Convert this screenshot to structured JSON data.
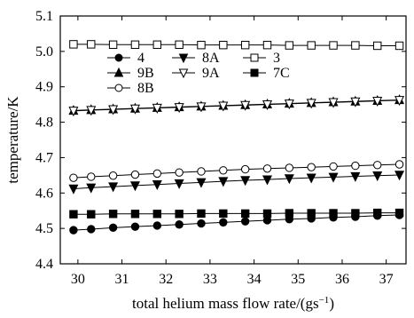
{
  "chart_data": {
    "type": "line",
    "title": "",
    "xlabel": "total helium mass flow rate/(gs",
    "xlabel_sup": "−1",
    "xlabel_close": ")",
    "ylabel": "temperature/K",
    "xlim": [
      29.6,
      37.45
    ],
    "ylim": [
      4.4,
      5.1
    ],
    "xticks": [
      30,
      31,
      32,
      33,
      34,
      35,
      36,
      37
    ],
    "yticks": [
      4.4,
      4.5,
      4.6,
      4.7,
      4.8,
      4.9,
      5.0,
      5.1
    ],
    "xtick_labels": [
      "30",
      "31",
      "32",
      "33",
      "34",
      "35",
      "36",
      "37"
    ],
    "ytick_labels": [
      "4.4",
      "4.5",
      "4.6",
      "4.7",
      "4.8",
      "4.9",
      "5.0",
      "5.1"
    ],
    "x": [
      29.9,
      30.3,
      30.8,
      31.3,
      31.8,
      32.3,
      32.8,
      33.3,
      33.8,
      34.3,
      34.8,
      35.3,
      35.8,
      36.3,
      36.8,
      37.3
    ],
    "grid": false,
    "legend_position": "top-left, inside plot",
    "series": [
      {
        "name": "4",
        "marker": "filled-circle",
        "values": [
          4.495,
          4.498,
          4.502,
          4.505,
          4.508,
          4.511,
          4.514,
          4.517,
          4.52,
          4.523,
          4.526,
          4.528,
          4.531,
          4.533,
          4.536,
          4.538
        ]
      },
      {
        "name": "9B",
        "marker": "filled-triangle-up",
        "values": [
          4.833,
          4.835,
          4.837,
          4.839,
          4.841,
          4.843,
          4.845,
          4.847,
          4.849,
          4.851,
          4.853,
          4.855,
          4.857,
          4.859,
          4.861,
          4.863
        ]
      },
      {
        "name": "8B",
        "marker": "open-circle",
        "values": [
          4.643,
          4.646,
          4.649,
          4.652,
          4.655,
          4.658,
          4.661,
          4.664,
          4.667,
          4.669,
          4.671,
          4.673,
          4.675,
          4.677,
          4.679,
          4.681
        ]
      },
      {
        "name": "8A",
        "marker": "filled-triangle-down",
        "values": [
          4.612,
          4.615,
          4.618,
          4.621,
          4.624,
          4.627,
          4.63,
          4.633,
          4.636,
          4.638,
          4.641,
          4.643,
          4.645,
          4.647,
          4.649,
          4.651
        ]
      },
      {
        "name": "9A",
        "marker": "open-triangle-down",
        "values": [
          4.832,
          4.834,
          4.836,
          4.838,
          4.84,
          4.842,
          4.844,
          4.846,
          4.848,
          4.85,
          4.852,
          4.854,
          4.856,
          4.858,
          4.86,
          4.862
        ]
      },
      {
        "name": "3",
        "marker": "open-square",
        "values": [
          5.02,
          5.02,
          5.019,
          5.019,
          5.019,
          5.019,
          5.018,
          5.018,
          5.018,
          5.018,
          5.017,
          5.017,
          5.017,
          5.017,
          5.016,
          5.016
        ]
      },
      {
        "name": "7C",
        "marker": "filled-square",
        "values": [
          4.54,
          4.54,
          4.541,
          4.541,
          4.541,
          4.541,
          4.542,
          4.542,
          4.542,
          4.542,
          4.543,
          4.543,
          4.543,
          4.543,
          4.544,
          4.544
        ]
      }
    ],
    "colors": {
      "line": "#000000",
      "background": "#ffffff"
    }
  }
}
